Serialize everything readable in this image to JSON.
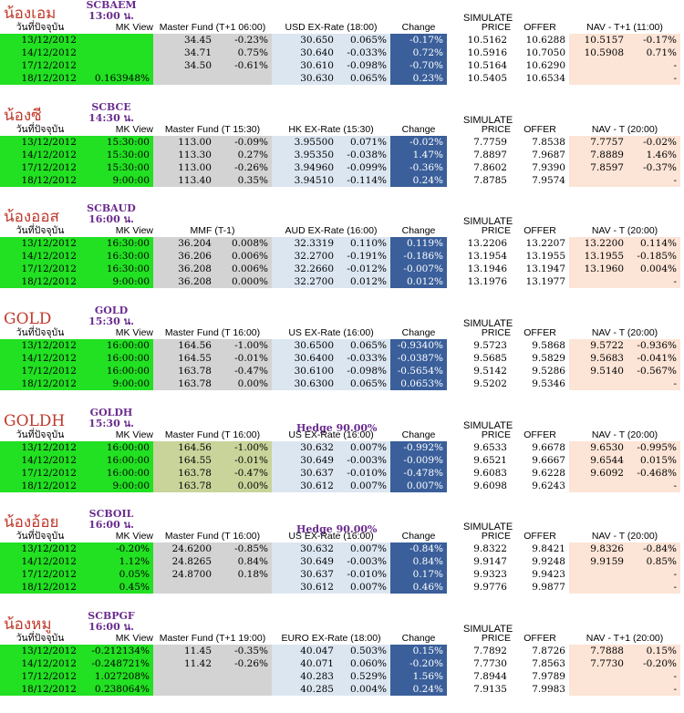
{
  "sections": [
    {
      "nick": "น้องเอม",
      "code": "SCBAEM",
      "time": "13:00 น.",
      "simulate": "SIMULATE",
      "hedge": "",
      "headers": [
        "วันที่ปัจจุบัน",
        "MK View",
        "Master Fund (T+1 06:00)",
        "USD EX-Rate (18:00)",
        "Change",
        "PRICE",
        "OFFER",
        "NAV - T+1 (11:00)"
      ],
      "rows": [
        [
          "13/12/2012",
          "",
          "34.45",
          "-0.23%",
          "30.650",
          "0.065%",
          "-0.17%",
          "10.5162",
          "10.6288",
          "10.5157",
          "-0.17%"
        ],
        [
          "14/12/2012",
          "",
          "34.71",
          "0.75%",
          "30.640",
          "-0.033%",
          "0.72%",
          "10.5916",
          "10.7050",
          "10.5908",
          "0.71%"
        ],
        [
          "17/12/2012",
          "",
          "34.50",
          "-0.61%",
          "30.610",
          "-0.098%",
          "-0.70%",
          "10.5164",
          "10.6290",
          "",
          "-"
        ],
        [
          "18/12/2012",
          "0.163948%",
          "",
          "",
          "30.630",
          "0.065%",
          "0.23%",
          "10.5405",
          "10.6534",
          "",
          "-"
        ]
      ],
      "mf_color": "gray"
    },
    {
      "nick": "น้องซี",
      "code": "SCBCE",
      "time": "14:30 น.",
      "simulate": "SIMULATE",
      "hedge": "",
      "headers": [
        "วันที่ปัจจุบัน",
        "MK View",
        "Master Fund (T 15:30)",
        "HK EX-Rate (15:30)",
        "Change",
        "PRICE",
        "OFFER",
        "NAV - T (20:00)"
      ],
      "rows": [
        [
          "13/12/2012",
          "15:30:00",
          "113.00",
          "-0.09%",
          "3.95500",
          "0.071%",
          "-0.02%",
          "7.7759",
          "7.8538",
          "7.7757",
          "-0.02%"
        ],
        [
          "14/12/2012",
          "15:30:00",
          "113.30",
          "0.27%",
          "3.95350",
          "-0.038%",
          "1.47%",
          "7.8897",
          "7.9687",
          "7.8889",
          "1.46%"
        ],
        [
          "17/12/2012",
          "15:30:00",
          "113.00",
          "-0.26%",
          "3.94960",
          "-0.099%",
          "-0.36%",
          "7.8602",
          "7.9390",
          "7.8597",
          "-0.37%"
        ],
        [
          "18/12/2012",
          "9:00:00",
          "113.40",
          "0.35%",
          "3.94510",
          "-0.114%",
          "0.24%",
          "7.8785",
          "7.9574",
          "",
          "-"
        ]
      ],
      "mf_color": "gray"
    },
    {
      "nick": "น้องออส",
      "code": "SCBAUD",
      "time": "16:00 น.",
      "simulate": "SIMULATE",
      "hedge": "",
      "headers": [
        "วันที่ปัจจุบัน",
        "MK View",
        "MMF (T-1)",
        "AUD EX-Rate (16:00)",
        "Change",
        "PRICE",
        "OFFER",
        "NAV - T (20:00)"
      ],
      "rows": [
        [
          "13/12/2012",
          "16:30:00",
          "36.204",
          "0.008%",
          "32.3319",
          "0.110%",
          "0.119%",
          "13.2206",
          "13.2207",
          "13.2200",
          "0.114%"
        ],
        [
          "14/12/2012",
          "16:30:00",
          "36.206",
          "0.006%",
          "32.2700",
          "-0.191%",
          "-0.186%",
          "13.1954",
          "13.1955",
          "13.1955",
          "-0.185%"
        ],
        [
          "17/12/2012",
          "16:30:00",
          "36.208",
          "0.006%",
          "32.2660",
          "-0.012%",
          "-0.007%",
          "13.1946",
          "13.1947",
          "13.1960",
          "0.004%"
        ],
        [
          "18/12/2012",
          "9:00:00",
          "36.208",
          "0.000%",
          "32.2700",
          "0.012%",
          "0.012%",
          "13.1976",
          "13.1977",
          "",
          "-"
        ]
      ],
      "mf_color": "gray"
    },
    {
      "nick": "GOLD",
      "code": "GOLD",
      "time": "15:30 น.",
      "simulate": "SIMULATE",
      "hedge": "",
      "headers": [
        "วันที่ปัจจุบัน",
        "MK View",
        "Master Fund (T 16:00)",
        "US EX-Rate (16:00)",
        "Change",
        "PRICE",
        "OFFER",
        "NAV - T (20:00)"
      ],
      "rows": [
        [
          "13/12/2012",
          "16:00:00",
          "164.56",
          "-1.00%",
          "30.6500",
          "0.065%",
          "-0.9340%",
          "9.5723",
          "9.5868",
          "9.5722",
          "-0.936%"
        ],
        [
          "14/12/2012",
          "16:00:00",
          "164.55",
          "-0.01%",
          "30.6400",
          "-0.033%",
          "-0.0387%",
          "9.5685",
          "9.5829",
          "9.5683",
          "-0.041%"
        ],
        [
          "17/12/2012",
          "16:00:00",
          "163.78",
          "-0.47%",
          "30.6100",
          "-0.098%",
          "-0.5654%",
          "9.5142",
          "9.5286",
          "9.5140",
          "-0.567%"
        ],
        [
          "18/12/2012",
          "9:00:00",
          "163.78",
          "0.00%",
          "30.6300",
          "0.065%",
          "0.0653%",
          "9.5202",
          "9.5346",
          "",
          "-"
        ]
      ],
      "mf_color": "gray"
    },
    {
      "nick": "GOLDH",
      "code": "GOLDH",
      "time": "15:30 น.",
      "simulate": "SIMULATE",
      "hedge": "Hedge 90.00%",
      "headers": [
        "วันที่ปัจจุบัน",
        "MK View",
        "Master Fund (T 16:00)",
        "US EX-Rate (16:00)",
        "Change",
        "PRICE",
        "OFFER",
        "NAV - T (20:00)"
      ],
      "rows": [
        [
          "13/12/2012",
          "16:00:00",
          "164.56",
          "-1.00%",
          "30.632",
          "0.007%",
          "-0.992%",
          "9.6533",
          "9.6678",
          "9.6530",
          "-0.995%"
        ],
        [
          "14/12/2012",
          "16:00:00",
          "164.55",
          "-0.01%",
          "30.649",
          "-0.003%",
          "-0.009%",
          "9.6521",
          "9.6667",
          "9.6544",
          "0.015%"
        ],
        [
          "17/12/2012",
          "16:00:00",
          "163.78",
          "-0.47%",
          "30.637",
          "-0.010%",
          "-0.478%",
          "9.6083",
          "9.6228",
          "9.6092",
          "-0.468%"
        ],
        [
          "18/12/2012",
          "9:00:00",
          "163.78",
          "0.00%",
          "30.612",
          "0.007%",
          "0.007%",
          "9.6098",
          "9.6243",
          "",
          "-"
        ]
      ],
      "mf_color": "olive"
    },
    {
      "nick": "น้องอ้อย",
      "code": "SCBOIL",
      "time": "16:00 น.",
      "simulate": "SIMULATE",
      "hedge": "Hedge 90.00%",
      "headers": [
        "วันที่ปัจจุบัน",
        "MK View",
        "Master Fund (T 16:00)",
        "US EX-Rate (16:00)",
        "Change",
        "PRICE",
        "OFFER",
        "NAV - T (20:00)"
      ],
      "rows": [
        [
          "13/12/2012",
          "-0.20%",
          "24.6200",
          "-0.85%",
          "30.632",
          "0.007%",
          "-0.84%",
          "9.8322",
          "9.8421",
          "9.8326",
          "-0.84%"
        ],
        [
          "14/12/2012",
          "1.12%",
          "24.8265",
          "0.84%",
          "30.649",
          "-0.003%",
          "0.84%",
          "9.9147",
          "9.9248",
          "9.9159",
          "0.85%"
        ],
        [
          "17/12/2012",
          "0.05%",
          "24.8700",
          "0.18%",
          "30.637",
          "-0.010%",
          "0.17%",
          "9.9323",
          "9.9423",
          "",
          "-"
        ],
        [
          "18/12/2012",
          "0.45%",
          "",
          "",
          "30.612",
          "0.007%",
          "0.46%",
          "9.9776",
          "9.9877",
          "",
          "-"
        ]
      ],
      "mf_color": "gray"
    },
    {
      "nick": "น้องหมู",
      "code": "SCBPGF",
      "time": "16:00 น.",
      "simulate": "SIMULATE",
      "hedge": "",
      "headers": [
        "วันที่ปัจจุบัน",
        "MK View",
        "Master Fund (T+1 19:00)",
        "EURO EX-Rate (18:00)",
        "Change",
        "PRICE",
        "OFFER",
        "NAV - T+1 (20:00)"
      ],
      "rows": [
        [
          "13/12/2012",
          "-0.212134%",
          "11.45",
          "-0.35%",
          "40.047",
          "0.503%",
          "0.15%",
          "7.7892",
          "7.8726",
          "7.7888",
          "0.15%"
        ],
        [
          "14/12/2012",
          "-0.248721%",
          "11.42",
          "-0.26%",
          "40.071",
          "0.060%",
          "-0.20%",
          "7.7730",
          "7.8563",
          "7.7730",
          "-0.20%"
        ],
        [
          "17/12/2012",
          "1.027208%",
          "",
          "",
          "40.283",
          "0.529%",
          "1.56%",
          "7.8944",
          "7.9789",
          "",
          "-"
        ],
        [
          "18/12/2012",
          "0.238064%",
          "",
          "",
          "40.285",
          "0.004%",
          "0.24%",
          "7.9135",
          "7.9983",
          "",
          "-"
        ]
      ],
      "mf_color": "gray"
    }
  ]
}
